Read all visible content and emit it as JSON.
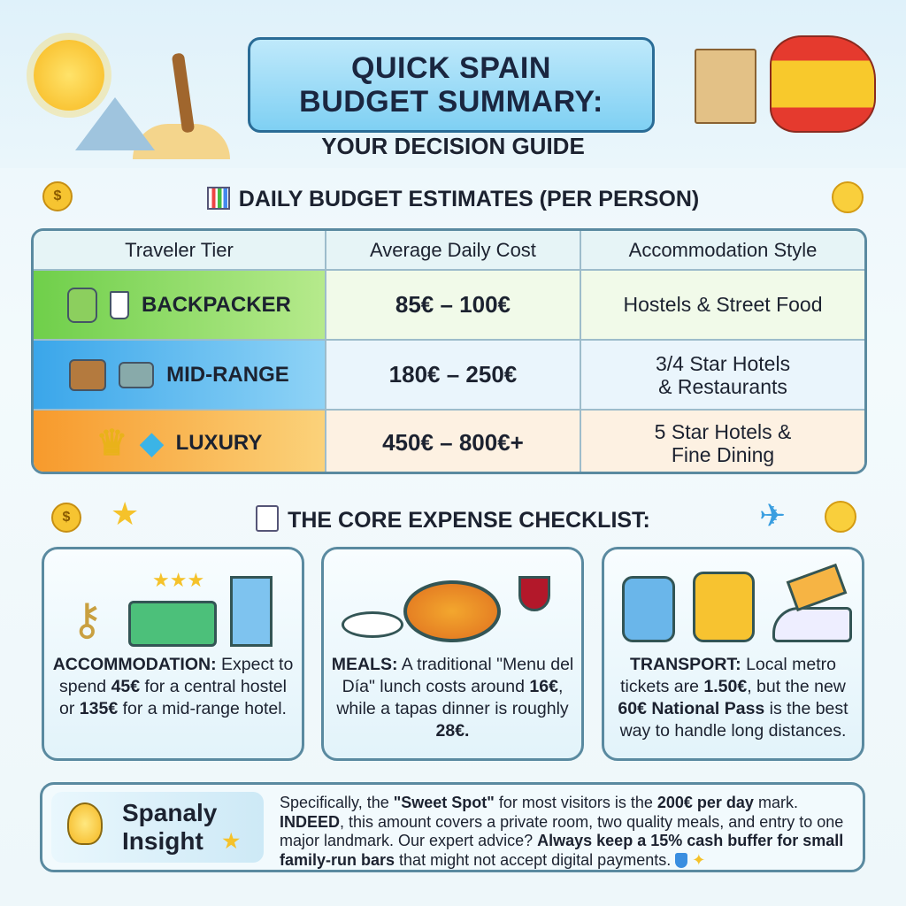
{
  "header": {
    "title_line1": "QUICK SPAIN",
    "title_line2": "BUDGET SUMMARY:",
    "subtitle": "YOUR DECISION GUIDE"
  },
  "section1": {
    "title": "DAILY BUDGET ESTIMATES (PER PERSON)",
    "icon": "bar-chart-icon"
  },
  "table": {
    "headers": [
      "Traveler Tier",
      "Average Daily Cost",
      "Accommodation Style"
    ],
    "rows": [
      {
        "tier": "BACKPACKER",
        "cost": "85€ – 100€",
        "style": "Hostels & Street Food",
        "color": "#7fd35a",
        "icons": [
          "backpack-icon",
          "coffee-cup-icon"
        ]
      },
      {
        "tier": "MID-RANGE",
        "cost": "180€ – 250€",
        "style_line1": "3/4 Star Hotels",
        "style_line2": "& Restaurants",
        "color": "#4fb6ee",
        "icons": [
          "suitcase-icon",
          "camera-icon"
        ]
      },
      {
        "tier": "LUXURY",
        "cost": "450€ – 800€+",
        "style_line1": "5 Star Hotels &",
        "style_line2": "Fine Dining",
        "color": "#f6a33c",
        "icons": [
          "crown-icon",
          "diamond-icon"
        ]
      }
    ]
  },
  "section2": {
    "title": "THE CORE EXPENSE CHECKLIST:",
    "icon": "checklist-pencil-icon"
  },
  "cards": [
    {
      "icon": "hotel-keys-bed-icon",
      "segments": [
        {
          "t": "ACCOMMODATION:",
          "b": true
        },
        {
          "t": " Expect to spend "
        },
        {
          "t": "45€",
          "b": true
        },
        {
          "t": " for a central hostel or "
        },
        {
          "t": "135€",
          "b": true
        },
        {
          "t": " for a mid-range hotel."
        }
      ]
    },
    {
      "icon": "paella-wine-icon",
      "segments": [
        {
          "t": "MEALS:",
          "b": true
        },
        {
          "t": " A traditional \"Menu del Día\" lunch costs around "
        },
        {
          "t": "16€",
          "b": true
        },
        {
          "t": ", while a tapas dinner is roughly "
        },
        {
          "t": "28€.",
          "b": true
        }
      ]
    },
    {
      "icon": "train-bus-ticket-icon",
      "segments": [
        {
          "t": "TRANSPORT:",
          "b": true
        },
        {
          "t": " Local metro tickets are "
        },
        {
          "t": "1.50€",
          "b": true
        },
        {
          "t": ", but the new "
        },
        {
          "t": "60€ National Pass",
          "b": true
        },
        {
          "t": " is the best way to handle long distances."
        }
      ]
    }
  ],
  "insight": {
    "label_line1": "Spanaly",
    "label_line2": "Insight",
    "icon": "lightbulb-icon",
    "segments": [
      {
        "t": "Specifically, the "
      },
      {
        "t": "\"Sweet Spot\"",
        "b": true
      },
      {
        "t": " for most visitors is the "
      },
      {
        "t": "200€ per day",
        "b": true
      },
      {
        "t": " mark. "
      },
      {
        "t": "INDEED",
        "b": true
      },
      {
        "t": ", this amount covers a private room, two quality meals, and entry to one major landmark. Our expert advice? "
      },
      {
        "t": "Always keep a 15% cash buffer for small family-run bars",
        "b": true
      },
      {
        "t": " that might not accept digital payments. "
      }
    ]
  },
  "colors": {
    "accent": "#2a6c96",
    "backpacker": "#7fd35a",
    "midrange": "#4fb6ee",
    "luxury": "#f6a33c"
  }
}
